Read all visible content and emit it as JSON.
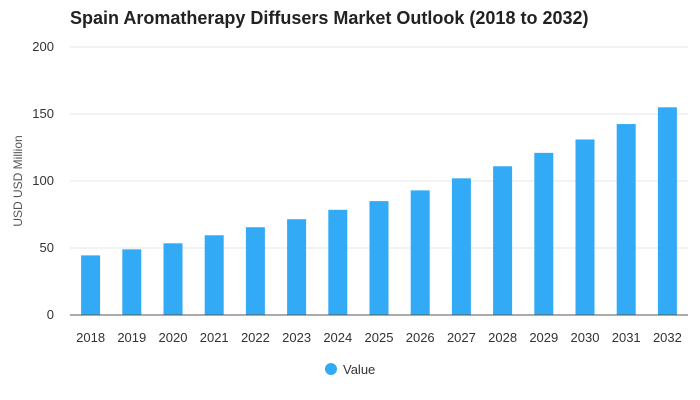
{
  "chart_data": {
    "type": "bar",
    "title": "Spain Aromatherapy Diffusers Market Outlook (2018 to 2032)",
    "xlabel": "",
    "ylabel": "USD USD Million",
    "categories": [
      "2018",
      "2019",
      "2020",
      "2021",
      "2022",
      "2023",
      "2024",
      "2025",
      "2026",
      "2027",
      "2028",
      "2029",
      "2030",
      "2031",
      "2032"
    ],
    "series": [
      {
        "name": "Value",
        "values": [
          44.5,
          49,
          53.5,
          59.5,
          65.5,
          71.5,
          78.5,
          85,
          93,
          102,
          111,
          121,
          131,
          142.5,
          155
        ]
      }
    ],
    "ylim": [
      0,
      200
    ],
    "yticks": [
      0,
      50,
      100,
      150,
      200
    ],
    "grid": true,
    "legend_position": "bottom-center",
    "colors": {
      "bar": "#33aaf5",
      "grid": "#e6e6e6",
      "axis": "#555555"
    }
  }
}
